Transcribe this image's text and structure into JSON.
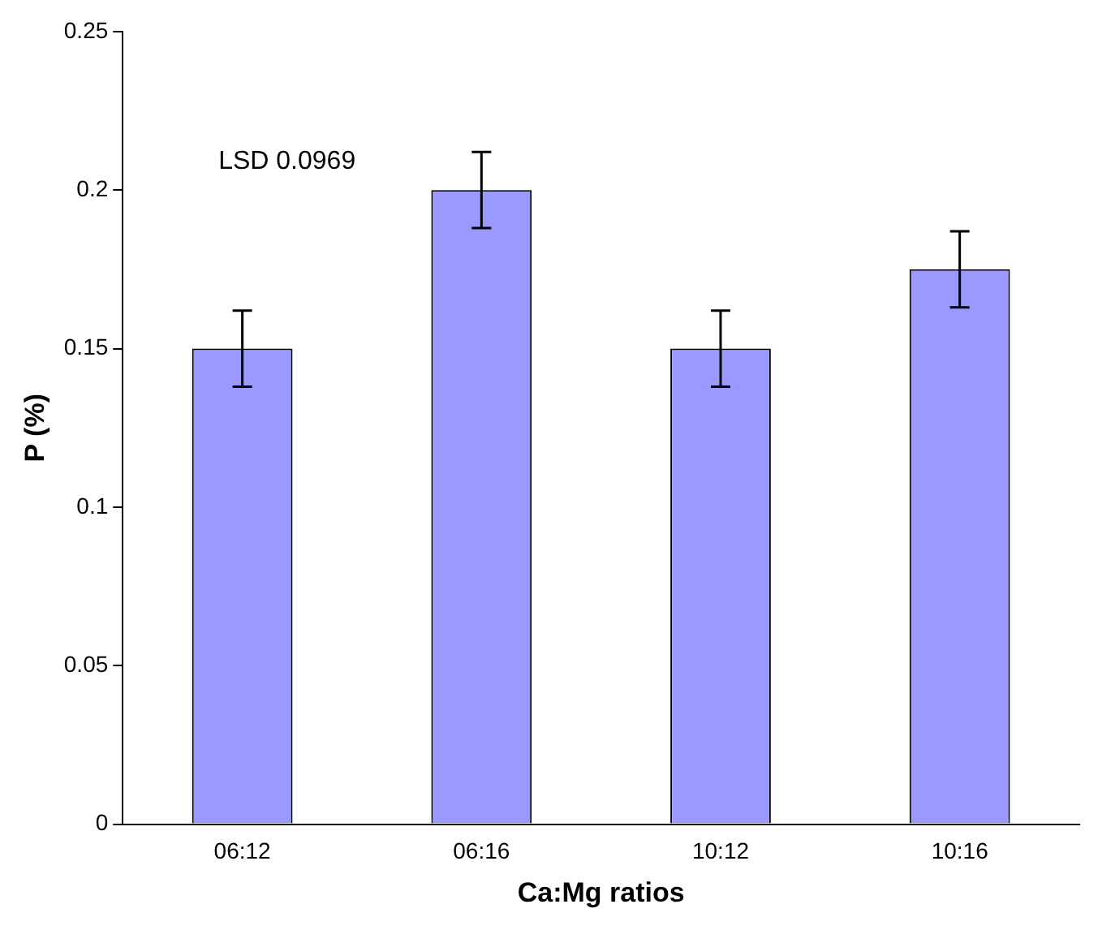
{
  "chart_data": {
    "type": "bar",
    "xlabel": "Ca:Mg ratios",
    "ylabel": "P (%)",
    "categories": [
      "06:12",
      "06:16",
      "10:12",
      "10:16"
    ],
    "values": [
      0.15,
      0.2,
      0.15,
      0.175
    ],
    "color": "#9999ff",
    "errors": [
      0.012,
      0.012,
      0.012,
      0.012
    ],
    "ylim": [
      0,
      0.25
    ],
    "yticks": [
      0,
      0.05,
      0.1,
      0.15,
      0.2,
      0.25
    ],
    "grid": false,
    "legend": false,
    "annotations": [
      "LSD 0.0969"
    ]
  }
}
